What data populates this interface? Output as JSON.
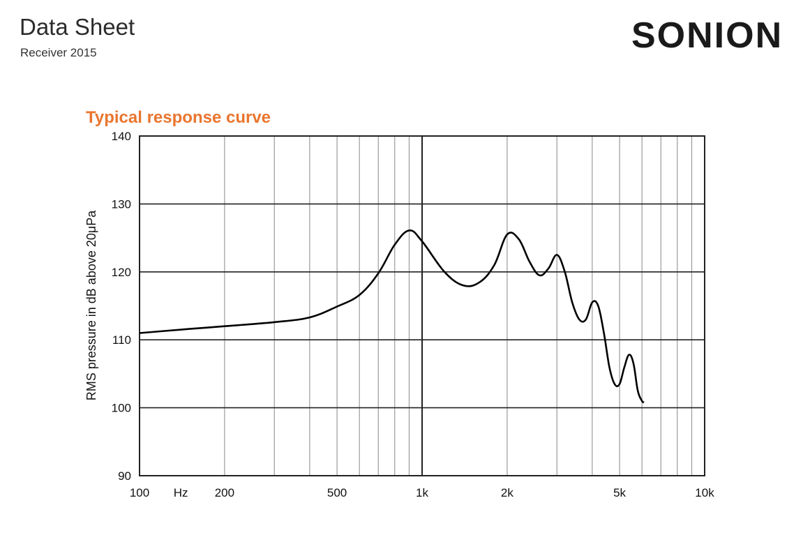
{
  "header": {
    "title": "Data Sheet",
    "subtitle": "Receiver 2015",
    "logo_text": "SONION",
    "logo_accent_color": "#f07a32"
  },
  "colors": {
    "accent": "#e9762f",
    "grid": "#9a9a9a",
    "grid_major": "#222222",
    "curve": "#000000"
  },
  "chart_data": {
    "type": "line",
    "title": "Typical response curve",
    "xlabel": "",
    "ylabel": "RMS pressure in dB above 20μPa",
    "x_scale": "log",
    "xlim": [
      100,
      10000
    ],
    "ylim": [
      90,
      140
    ],
    "x_major_ticks": [
      100,
      1000,
      10000
    ],
    "x_minor_ticks": [
      200,
      300,
      400,
      500,
      600,
      700,
      800,
      900,
      2000,
      3000,
      4000,
      5000,
      6000,
      7000,
      8000,
      9000
    ],
    "x_tick_labels": [
      {
        "x": 100,
        "label": "100"
      },
      {
        "x": 140,
        "label": "Hz"
      },
      {
        "x": 200,
        "label": "200"
      },
      {
        "x": 500,
        "label": "500"
      },
      {
        "x": 1000,
        "label": "1k"
      },
      {
        "x": 2000,
        "label": "2k"
      },
      {
        "x": 5000,
        "label": "5k"
      },
      {
        "x": 10000,
        "label": "10k"
      }
    ],
    "y_ticks": [
      90,
      100,
      110,
      120,
      130,
      140
    ],
    "y_tick_labels": [
      "90",
      "100",
      "110",
      "120",
      "130",
      "140"
    ],
    "grid": true,
    "series": [
      {
        "x": [
          100,
          150,
          200,
          300,
          400,
          500,
          600,
          700,
          800,
          900,
          1000,
          1200,
          1400,
          1600,
          1800,
          2000,
          2200,
          2400,
          2600,
          2800,
          3000,
          3200,
          3400,
          3600,
          3800,
          4000,
          4200,
          4400,
          4600,
          4800,
          5000,
          5200,
          5400,
          5600,
          5800,
          6000,
          6100
        ],
        "y": [
          111.0,
          111.6,
          112.0,
          112.6,
          113.3,
          114.9,
          116.6,
          119.8,
          124.0,
          126.1,
          124.5,
          120.0,
          118.0,
          118.5,
          121.0,
          125.5,
          124.8,
          121.5,
          119.5,
          120.5,
          122.5,
          120.0,
          115.5,
          113.0,
          113.0,
          115.5,
          115.0,
          111.0,
          106.0,
          103.5,
          103.5,
          106.0,
          107.8,
          106.5,
          102.5,
          101.0,
          100.8
        ]
      }
    ]
  }
}
